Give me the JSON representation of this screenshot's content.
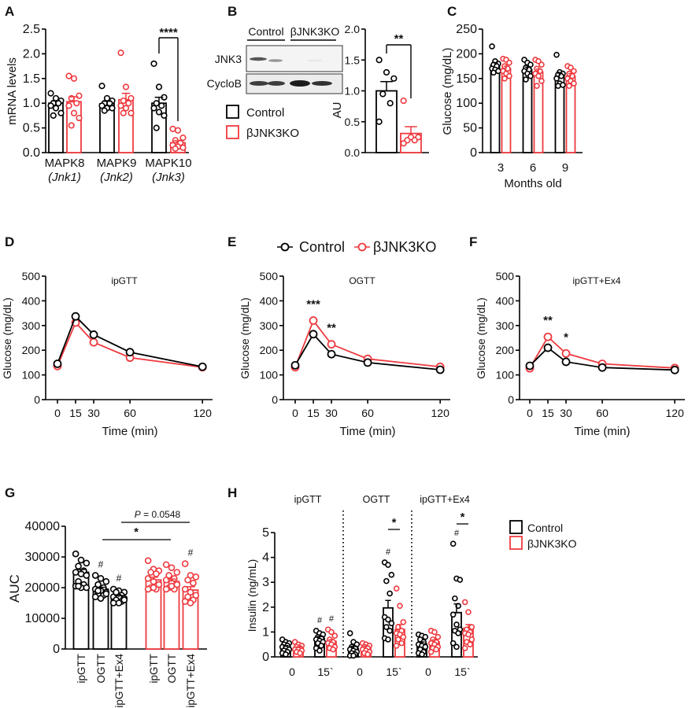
{
  "panel_labels": [
    "A",
    "B",
    "C",
    "D",
    "E",
    "F",
    "G",
    "H"
  ],
  "colors": {
    "control": "#000000",
    "ko": "#ee3a3f"
  },
  "legend": {
    "control": "Control",
    "ko": "βJNK3KO"
  },
  "chart_data": [
    {
      "panel": "A",
      "type": "bar",
      "ylabel": "mRNA levels",
      "ylim": [
        0,
        2.5
      ],
      "yticks": [
        0,
        0.5,
        1.0,
        1.5,
        2.0,
        2.5
      ],
      "ytick_labels": [
        "0.0",
        "0.5",
        "1.0",
        "1.5",
        "2.0",
        "2.5"
      ],
      "categories": [
        "MAPK8",
        "MAPK9",
        "MAPK10"
      ],
      "category_sublabels": [
        "(Jnk1)",
        "(Jnk2)",
        "(Jnk3)"
      ],
      "series": [
        {
          "name": "Control",
          "means": [
            1.0,
            0.99,
            1.0
          ],
          "sem": [
            0.05,
            0.05,
            0.12
          ],
          "points": [
            [
              1.2,
              1.1,
              1.05,
              1.0,
              1.0,
              0.95,
              0.9,
              0.8,
              0.75
            ],
            [
              1.35,
              1.1,
              1.05,
              1.0,
              1.0,
              0.95,
              0.9,
              0.9,
              0.85
            ],
            [
              1.8,
              1.33,
              1.12,
              1.0,
              0.95,
              0.9,
              0.82,
              0.75,
              0.5
            ]
          ]
        },
        {
          "name": "βJNK3KO",
          "means": [
            1.03,
            1.07,
            0.2
          ],
          "sem": [
            0.1,
            0.13,
            0.04
          ],
          "points": [
            [
              1.55,
              1.5,
              1.15,
              1.1,
              1.0,
              0.95,
              0.8,
              0.7,
              0.55
            ],
            [
              2.02,
              1.33,
              1.1,
              1.05,
              1.0,
              0.95,
              0.9,
              0.8,
              0.8
            ],
            [
              0.48,
              0.45,
              0.3,
              0.25,
              0.2,
              0.15,
              0.12,
              0.1,
              0.08
            ]
          ]
        }
      ],
      "annotations": [
        {
          "text": "****",
          "category": 2
        }
      ]
    },
    {
      "panel": "B",
      "type": "bar",
      "blot": {
        "lane_groups": [
          "Control",
          "βJNK3KO"
        ],
        "rows": [
          "JNK3",
          "CycloB"
        ]
      },
      "ylabel": "AU",
      "ylim": [
        0,
        2.0
      ],
      "yticks": [
        0,
        0.5,
        1.0,
        1.5,
        2.0
      ],
      "ytick_labels": [
        "0.0",
        "0.5",
        "1.0",
        "1.5",
        "2.0"
      ],
      "series": [
        {
          "name": "Control",
          "means": [
            1.0
          ],
          "sem": [
            0.15
          ],
          "points": [
            [
              1.5,
              1.3,
              1.2,
              0.95,
              0.8,
              0.5
            ]
          ]
        },
        {
          "name": "βJNK3KO",
          "means": [
            0.31
          ],
          "sem": [
            0.11
          ],
          "points": [
            [
              0.84,
              0.25,
              0.25,
              0.2,
              0.2,
              0.15
            ]
          ]
        }
      ],
      "annotations": [
        {
          "text": "**",
          "category": 0
        }
      ]
    },
    {
      "panel": "C",
      "type": "bar",
      "ylabel": "Glucose (mg/dL)",
      "xlabel": "Months old",
      "ylim": [
        0,
        250
      ],
      "yticks": [
        0,
        50,
        100,
        150,
        200,
        250
      ],
      "ytick_labels": [
        "0",
        "50",
        "100",
        "150",
        "200",
        "250"
      ],
      "categories": [
        "3",
        "6",
        "9"
      ],
      "series": [
        {
          "name": "Control",
          "means": [
            177,
            168,
            155
          ],
          "sem": [
            5,
            5,
            6
          ],
          "points": [
            [
              215,
              185,
              180,
              178,
              175,
              170,
              168,
              165,
              162
            ],
            [
              188,
              182,
              178,
              172,
              168,
              165,
              160,
              155,
              148
            ],
            [
              198,
              163,
              160,
              158,
              155,
              150,
              140,
              137,
              135
            ]
          ]
        },
        {
          "name": "βJNK3KO",
          "means": [
            170,
            163,
            155
          ],
          "sem": [
            5,
            6,
            5
          ],
          "points": [
            [
              190,
              188,
              182,
              175,
              170,
              165,
              160,
              155,
              150
            ],
            [
              188,
              185,
              178,
              170,
              165,
              160,
              155,
              145,
              135
            ],
            [
              175,
              172,
              165,
              160,
              155,
              150,
              145,
              140,
              135
            ]
          ]
        }
      ]
    },
    {
      "panel": "D",
      "type": "line",
      "title": "ipGTT",
      "xlabel": "Time (min)",
      "ylabel": "Glucose (mg/dL)",
      "x": [
        0,
        15,
        30,
        60,
        120
      ],
      "xtick_labels": [
        "0",
        "15",
        "30",
        "60",
        "120"
      ],
      "ylim": [
        0,
        500
      ],
      "yticks": [
        0,
        100,
        200,
        300,
        400,
        500
      ],
      "ytick_labels": [
        "0",
        "100",
        "200",
        "300",
        "400",
        "500"
      ],
      "series": [
        {
          "name": "Control",
          "values": [
            145,
            337,
            263,
            192,
            133
          ],
          "sem": [
            6,
            8,
            9,
            6,
            5
          ]
        },
        {
          "name": "βJNK3KO",
          "values": [
            136,
            312,
            232,
            170,
            131
          ],
          "sem": [
            5,
            9,
            9,
            6,
            5
          ]
        }
      ],
      "annotations": []
    },
    {
      "panel": "E",
      "type": "line",
      "title": "OGTT",
      "xlabel": "Time (min)",
      "ylabel": "Glucose (mg/dL)",
      "x": [
        0,
        15,
        30,
        60,
        120
      ],
      "xtick_labels": [
        "0",
        "15",
        "30",
        "60",
        "120"
      ],
      "ylim": [
        0,
        500
      ],
      "yticks": [
        0,
        100,
        200,
        300,
        400,
        500
      ],
      "ytick_labels": [
        "0",
        "100",
        "200",
        "300",
        "400",
        "500"
      ],
      "series": [
        {
          "name": "Control",
          "values": [
            139,
            265,
            184,
            150,
            121
          ],
          "sem": [
            5,
            7,
            6,
            5,
            4
          ]
        },
        {
          "name": "βJNK3KO",
          "values": [
            131,
            320,
            224,
            165,
            133
          ],
          "sem": [
            5,
            10,
            10,
            6,
            5
          ]
        }
      ],
      "annotations": [
        {
          "text": "***",
          "x": 15
        },
        {
          "text": "**",
          "x": 30
        }
      ]
    },
    {
      "panel": "F",
      "type": "line",
      "title": "ipGTT+Ex4",
      "xlabel": "Time (min)",
      "ylabel": "Glucose (mg/dL)",
      "x": [
        0,
        15,
        30,
        60,
        120
      ],
      "xtick_labels": [
        "0",
        "15",
        "30",
        "60",
        "120"
      ],
      "ylim": [
        0,
        500
      ],
      "yticks": [
        0,
        100,
        200,
        300,
        400,
        500
      ],
      "ytick_labels": [
        "0",
        "100",
        "200",
        "300",
        "400",
        "500"
      ],
      "series": [
        {
          "name": "Control",
          "values": [
            137,
            210,
            153,
            130,
            120
          ],
          "sem": [
            5,
            7,
            5,
            4,
            4
          ]
        },
        {
          "name": "βJNK3KO",
          "values": [
            127,
            254,
            187,
            145,
            128
          ],
          "sem": [
            5,
            11,
            10,
            7,
            4
          ]
        }
      ],
      "annotations": [
        {
          "text": "**",
          "x": 15
        },
        {
          "text": "*",
          "x": 30
        }
      ]
    },
    {
      "panel": "G",
      "type": "bar",
      "ylabel": "AUC",
      "ylim": [
        0,
        40000
      ],
      "yticks": [
        0,
        10000,
        20000,
        30000,
        40000
      ],
      "ytick_labels": [
        "0",
        "10000",
        "20000",
        "30000",
        "40000"
      ],
      "categories": [
        "ipGTT",
        "OGTT",
        "ipGTT+Ex4"
      ],
      "series": [
        {
          "name": "Control",
          "means": [
            25000,
            19500,
            17000
          ],
          "sem": [
            900,
            600,
            400
          ],
          "points": [
            [
              31000,
              29000,
              28000,
              27000,
              25500,
              25000,
              24500,
              24000,
              22000,
              21000,
              20500,
              20000,
              20000,
              20500
            ],
            [
              24000,
              23000,
              22000,
              21000,
              20000,
              19500,
              19000,
              18500,
              18000,
              17500,
              17000,
              16500,
              18000,
              19000
            ],
            [
              19500,
              19000,
              18500,
              18000,
              17500,
              17000,
              17000,
              16500,
              16000,
              15500,
              15000,
              15000,
              16000,
              18500
            ]
          ]
        },
        {
          "name": "βJNK3KO",
          "means": [
            22500,
            22000,
            19200
          ],
          "sem": [
            900,
            800,
            1100
          ],
          "points": [
            [
              28800,
              26000,
              25500,
              25000,
              24500,
              23000,
              22000,
              21000,
              20000,
              19500,
              19500,
              20000
            ],
            [
              27500,
              26500,
              25000,
              24000,
              23000,
              22500,
              21500,
              21000,
              20000,
              19500,
              19500,
              20500
            ],
            [
              27800,
              24000,
              23500,
              22500,
              21500,
              19500,
              18500,
              17500,
              17000,
              16000,
              15500,
              15000
            ]
          ]
        }
      ],
      "hash_marks": [
        {
          "series": 0,
          "category": 1,
          "text": "#"
        },
        {
          "series": 0,
          "category": 2,
          "text": "#"
        },
        {
          "series": 1,
          "category": 2,
          "text": "#"
        }
      ],
      "comparisons": [
        {
          "text": "*",
          "from": [
            0,
            1
          ],
          "to": [
            1,
            1
          ]
        },
        {
          "p_symbol": "P",
          "text": " = 0.0548",
          "from": [
            0,
            2
          ],
          "to": [
            1,
            2
          ]
        }
      ]
    },
    {
      "panel": "H",
      "type": "bar",
      "ylabel": "Insulin (ng/mL)",
      "ylim": [
        0,
        5
      ],
      "yticks": [
        0,
        1,
        2,
        3,
        4,
        5
      ],
      "ytick_labels": [
        "0",
        "1",
        "2",
        "3",
        "4",
        "5"
      ],
      "test_groups": [
        "ipGTT",
        "OGTT",
        "ipGTT+Ex4"
      ],
      "categories": [
        "0",
        "15`",
        "0",
        "15`",
        "0",
        "15`"
      ],
      "series": [
        {
          "name": "Control",
          "means": [
            0.4,
            0.75,
            0.35,
            1.97,
            0.52,
            1.78
          ],
          "sem": [
            0.05,
            0.07,
            0.07,
            0.3,
            0.08,
            0.35
          ],
          "points": [
            [
              0.7,
              0.6,
              0.55,
              0.5,
              0.45,
              0.4,
              0.35,
              0.3,
              0.25,
              0.2,
              0.15,
              0.1
            ],
            [
              1.05,
              0.95,
              0.9,
              0.8,
              0.75,
              0.7,
              0.65,
              0.6,
              0.55,
              0.45,
              0.35,
              0.25
            ],
            [
              0.95,
              0.6,
              0.5,
              0.4,
              0.35,
              0.3,
              0.25,
              0.2,
              0.15,
              0.1,
              0.05,
              0.05
            ],
            [
              3.8,
              3.7,
              3.3,
              3.05,
              2.55,
              1.6,
              1.5,
              1.35,
              1.2,
              1.05,
              0.75,
              0.7
            ],
            [
              0.9,
              0.85,
              0.8,
              0.7,
              0.6,
              0.5,
              0.45,
              0.4,
              0.3,
              0.2,
              0.15,
              0.1
            ],
            [
              4.55,
              3.15,
              3.1,
              2.35,
              2.05,
              1.7,
              1.3,
              1.1,
              1.05,
              0.95,
              0.55,
              0.4
            ]
          ]
        },
        {
          "name": "βJNK3KO",
          "means": [
            0.35,
            0.62,
            0.38,
            1.1,
            0.6,
            1.15
          ],
          "sem": [
            0.05,
            0.07,
            0.05,
            0.2,
            0.08,
            0.15
          ],
          "points": [
            [
              0.6,
              0.5,
              0.45,
              0.4,
              0.35,
              0.3,
              0.3,
              0.25,
              0.2,
              0.15
            ],
            [
              1.1,
              1.0,
              0.85,
              0.7,
              0.6,
              0.55,
              0.5,
              0.4,
              0.35,
              0.3
            ],
            [
              0.55,
              0.5,
              0.45,
              0.4,
              0.35,
              0.3,
              0.25,
              0.2,
              0.15,
              0.1
            ],
            [
              2.75,
              2.05,
              1.4,
              1.2,
              1.05,
              0.95,
              0.9,
              0.8,
              0.7,
              0.55,
              0.45
            ],
            [
              1.05,
              1.0,
              0.8,
              0.7,
              0.6,
              0.55,
              0.5,
              0.4,
              0.35,
              0.3,
              0.2
            ],
            [
              2.2,
              1.8,
              1.2,
              1.1,
              1.0,
              0.95,
              0.9,
              0.7,
              0.6,
              0.5,
              0.35
            ]
          ]
        }
      ],
      "hash_marks": [
        {
          "series": 0,
          "category": 1,
          "text": "#"
        },
        {
          "series": 1,
          "category": 1,
          "text": "#"
        },
        {
          "series": 0,
          "category": 3,
          "text": "#"
        },
        {
          "series": 0,
          "category": 5,
          "text": "#"
        }
      ],
      "comparisons": [
        {
          "text": "*",
          "category": 3
        },
        {
          "text": "*",
          "category": 5
        }
      ]
    }
  ]
}
